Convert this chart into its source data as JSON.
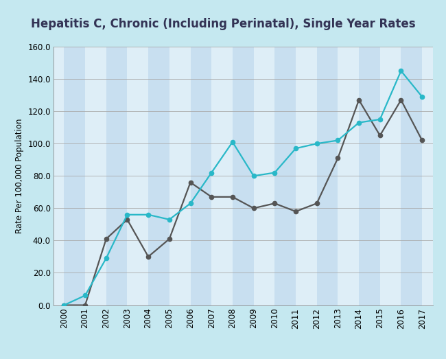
{
  "title": "Hepatitis C, Chronic (Including Perinatal), Single Year Rates",
  "years": [
    2000,
    2001,
    2002,
    2003,
    2004,
    2005,
    2006,
    2007,
    2008,
    2009,
    2010,
    2011,
    2012,
    2013,
    2014,
    2015,
    2016,
    2017
  ],
  "flagler": [
    0.0,
    0.0,
    41.0,
    53.0,
    30.0,
    41.0,
    76.0,
    67.0,
    67.0,
    60.0,
    63.0,
    58.0,
    63.0,
    91.0,
    127.0,
    105.0,
    127.0,
    102.0
  ],
  "florida": [
    0.0,
    6.0,
    29.0,
    56.0,
    56.0,
    53.0,
    63.0,
    82.0,
    101.0,
    80.0,
    82.0,
    97.0,
    100.0,
    102.0,
    113.0,
    115.0,
    145.0,
    129.0
  ],
  "flagler_color": "#555555",
  "florida_color": "#29b8c8",
  "ylabel": "Rate Per 100,000 Population",
  "ylim": [
    0,
    160
  ],
  "yticks": [
    0.0,
    20.0,
    40.0,
    60.0,
    80.0,
    100.0,
    120.0,
    140.0,
    160.0
  ],
  "background_outer": "#c5e8f0",
  "background_plot_light": "#deeef7",
  "background_plot_stripe": "#c8dff0",
  "title_box_color": "#ffffff",
  "title_fontsize": 12,
  "axis_fontsize": 8.5,
  "legend_fontsize": 9.5,
  "marker": "o",
  "linewidth": 1.6,
  "markersize": 4.5,
  "grid_color": "#aaaaaa",
  "spine_color": "#888888"
}
